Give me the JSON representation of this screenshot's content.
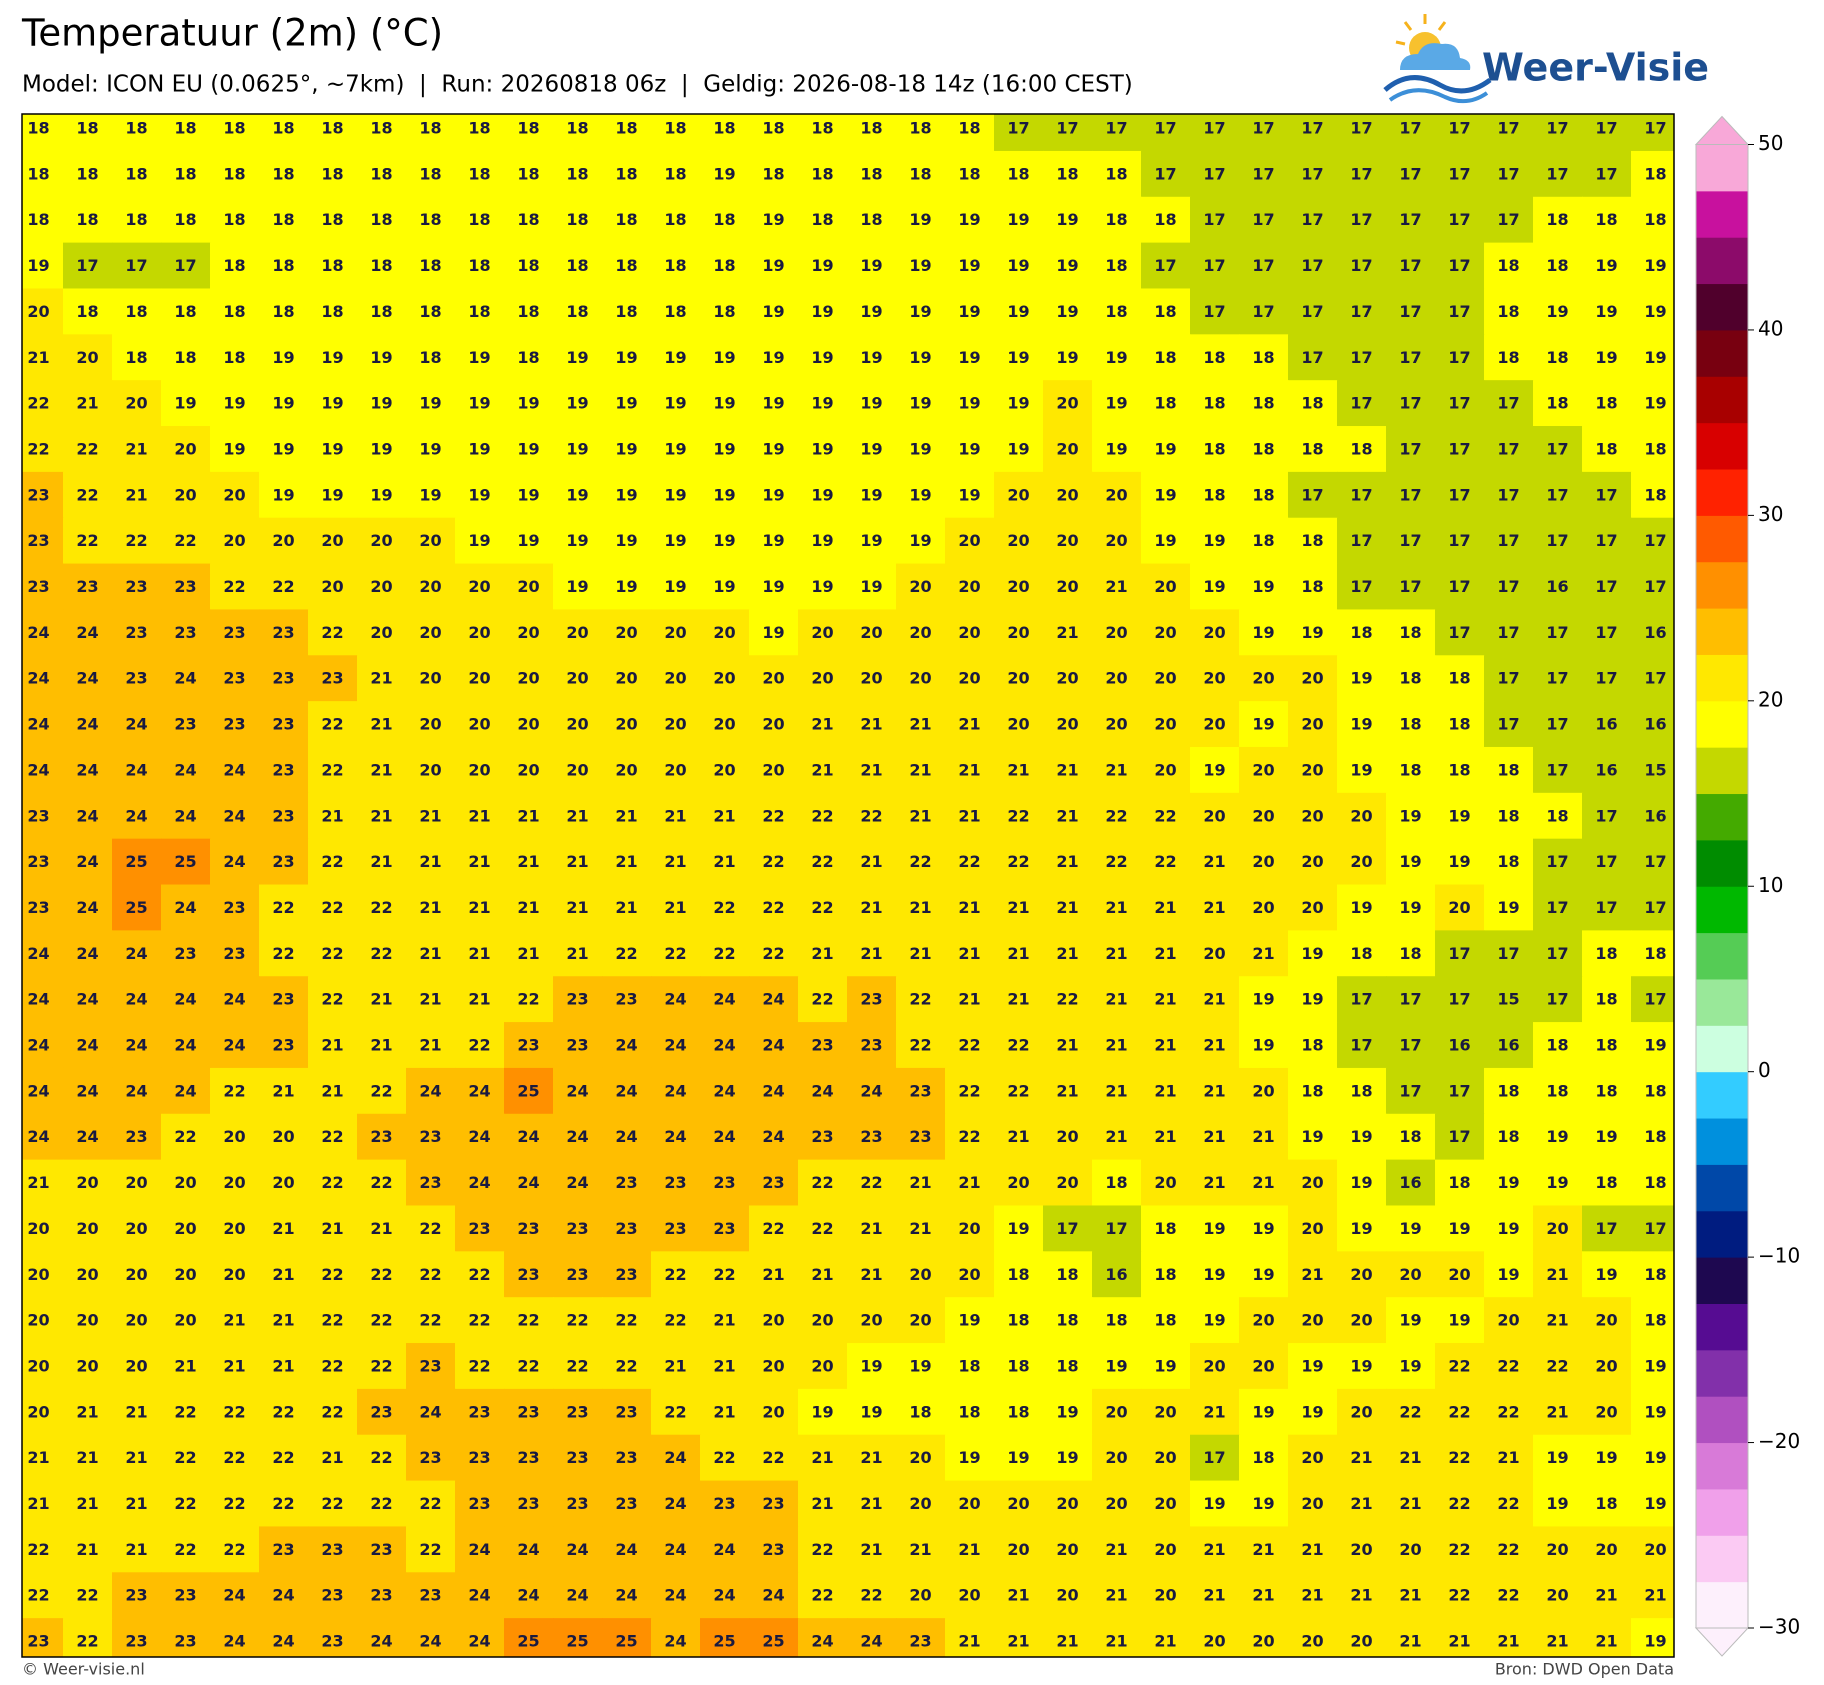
{
  "header": {
    "title": "Temperatuur (2m) (°C)",
    "subtitle": "Model: ICON EU (0.0625°, ~7km)  |  Run: 20260818 06z  |  Geldig: 2026-08-18 14z (16:00 CEST)"
  },
  "logo": {
    "text": "Weer-Visie"
  },
  "grid": {
    "rows": [
      [
        18,
        18,
        18,
        18,
        18,
        18,
        18,
        18,
        18,
        18,
        18,
        18,
        18,
        18,
        18,
        18,
        18,
        18,
        18,
        18,
        17,
        17,
        17,
        17,
        17,
        17,
        17,
        17,
        17,
        17,
        17,
        17,
        17,
        17
      ],
      [
        18,
        18,
        18,
        18,
        18,
        18,
        18,
        18,
        18,
        18,
        18,
        18,
        18,
        18,
        19,
        18,
        18,
        18,
        18,
        18,
        18,
        18,
        18,
        17,
        17,
        17,
        17,
        17,
        17,
        17,
        17,
        17,
        17,
        18
      ],
      [
        18,
        18,
        18,
        18,
        18,
        18,
        18,
        18,
        18,
        18,
        18,
        18,
        18,
        18,
        18,
        19,
        18,
        18,
        19,
        19,
        19,
        19,
        18,
        18,
        17,
        17,
        17,
        17,
        17,
        17,
        17,
        18,
        18,
        18
      ],
      [
        19,
        17,
        17,
        17,
        18,
        18,
        18,
        18,
        18,
        18,
        18,
        18,
        18,
        18,
        18,
        19,
        19,
        19,
        19,
        19,
        19,
        19,
        18,
        17,
        17,
        17,
        17,
        17,
        17,
        17,
        18,
        18,
        19,
        19
      ],
      [
        20,
        18,
        18,
        18,
        18,
        18,
        18,
        18,
        18,
        18,
        18,
        18,
        18,
        18,
        18,
        19,
        19,
        19,
        19,
        19,
        19,
        19,
        18,
        18,
        17,
        17,
        17,
        17,
        17,
        17,
        18,
        19,
        19,
        19
      ],
      [
        21,
        20,
        18,
        18,
        18,
        19,
        19,
        19,
        18,
        19,
        18,
        19,
        19,
        19,
        19,
        19,
        19,
        19,
        19,
        19,
        19,
        19,
        19,
        18,
        18,
        18,
        17,
        17,
        17,
        17,
        18,
        18,
        19,
        19
      ],
      [
        22,
        21,
        20,
        19,
        19,
        19,
        19,
        19,
        19,
        19,
        19,
        19,
        19,
        19,
        19,
        19,
        19,
        19,
        19,
        19,
        19,
        20,
        19,
        18,
        18,
        18,
        18,
        17,
        17,
        17,
        17,
        18,
        18,
        19
      ],
      [
        22,
        22,
        21,
        20,
        19,
        19,
        19,
        19,
        19,
        19,
        19,
        19,
        19,
        19,
        19,
        19,
        19,
        19,
        19,
        19,
        19,
        20,
        19,
        19,
        18,
        18,
        18,
        18,
        17,
        17,
        17,
        17,
        18,
        18
      ],
      [
        23,
        22,
        21,
        20,
        20,
        19,
        19,
        19,
        19,
        19,
        19,
        19,
        19,
        19,
        19,
        19,
        19,
        19,
        19,
        19,
        20,
        20,
        20,
        19,
        18,
        18,
        17,
        17,
        17,
        17,
        17,
        17,
        17,
        18
      ],
      [
        23,
        22,
        22,
        22,
        20,
        20,
        20,
        20,
        20,
        19,
        19,
        19,
        19,
        19,
        19,
        19,
        19,
        19,
        19,
        20,
        20,
        20,
        20,
        19,
        19,
        18,
        18,
        17,
        17,
        17,
        17,
        17,
        17,
        17
      ],
      [
        23,
        23,
        23,
        23,
        22,
        22,
        20,
        20,
        20,
        20,
        20,
        19,
        19,
        19,
        19,
        19,
        19,
        19,
        20,
        20,
        20,
        20,
        21,
        20,
        19,
        19,
        18,
        17,
        17,
        17,
        17,
        16,
        17,
        17
      ],
      [
        24,
        24,
        23,
        23,
        23,
        23,
        22,
        20,
        20,
        20,
        20,
        20,
        20,
        20,
        20,
        19,
        20,
        20,
        20,
        20,
        20,
        21,
        20,
        20,
        20,
        19,
        19,
        18,
        18,
        17,
        17,
        17,
        17,
        16
      ],
      [
        24,
        24,
        23,
        24,
        23,
        23,
        23,
        21,
        20,
        20,
        20,
        20,
        20,
        20,
        20,
        20,
        20,
        20,
        20,
        20,
        20,
        20,
        20,
        20,
        20,
        20,
        20,
        19,
        18,
        18,
        17,
        17,
        17,
        17
      ],
      [
        24,
        24,
        24,
        23,
        23,
        23,
        22,
        21,
        20,
        20,
        20,
        20,
        20,
        20,
        20,
        20,
        21,
        21,
        21,
        21,
        20,
        20,
        20,
        20,
        20,
        19,
        20,
        19,
        18,
        18,
        17,
        17,
        16,
        16
      ],
      [
        24,
        24,
        24,
        24,
        24,
        23,
        22,
        21,
        20,
        20,
        20,
        20,
        20,
        20,
        20,
        20,
        21,
        21,
        21,
        21,
        21,
        21,
        21,
        20,
        19,
        20,
        20,
        19,
        18,
        18,
        18,
        17,
        16,
        15
      ],
      [
        23,
        24,
        24,
        24,
        24,
        23,
        21,
        21,
        21,
        21,
        21,
        21,
        21,
        21,
        21,
        22,
        22,
        22,
        21,
        21,
        22,
        21,
        22,
        22,
        20,
        20,
        20,
        20,
        19,
        19,
        18,
        18,
        17,
        16
      ],
      [
        23,
        24,
        25,
        25,
        24,
        23,
        22,
        21,
        21,
        21,
        21,
        21,
        21,
        21,
        21,
        22,
        22,
        21,
        22,
        22,
        22,
        21,
        22,
        22,
        21,
        20,
        20,
        20,
        19,
        19,
        18,
        17,
        17,
        17
      ],
      [
        23,
        24,
        25,
        24,
        23,
        22,
        22,
        22,
        21,
        21,
        21,
        21,
        21,
        21,
        22,
        22,
        22,
        21,
        21,
        21,
        21,
        21,
        21,
        21,
        21,
        20,
        20,
        19,
        19,
        20,
        19,
        17,
        17,
        17
      ],
      [
        24,
        24,
        24,
        23,
        23,
        22,
        22,
        22,
        21,
        21,
        21,
        21,
        22,
        22,
        22,
        22,
        21,
        21,
        21,
        21,
        21,
        21,
        21,
        21,
        20,
        21,
        19,
        18,
        18,
        17,
        17,
        17,
        18,
        18
      ],
      [
        24,
        24,
        24,
        24,
        24,
        23,
        22,
        21,
        21,
        21,
        22,
        23,
        23,
        24,
        24,
        24,
        22,
        23,
        22,
        21,
        21,
        22,
        21,
        21,
        21,
        19,
        19,
        17,
        17,
        17,
        15,
        17,
        18,
        17
      ],
      [
        24,
        24,
        24,
        24,
        24,
        23,
        21,
        21,
        21,
        22,
        23,
        23,
        24,
        24,
        24,
        24,
        23,
        23,
        22,
        22,
        22,
        21,
        21,
        21,
        21,
        19,
        18,
        17,
        17,
        16,
        16,
        18,
        18,
        19
      ],
      [
        24,
        24,
        24,
        24,
        22,
        21,
        21,
        22,
        24,
        24,
        25,
        24,
        24,
        24,
        24,
        24,
        24,
        24,
        23,
        22,
        22,
        21,
        21,
        21,
        21,
        20,
        18,
        18,
        17,
        17,
        18,
        18,
        18,
        18
      ],
      [
        24,
        24,
        23,
        22,
        20,
        20,
        22,
        23,
        23,
        24,
        24,
        24,
        24,
        24,
        24,
        24,
        23,
        23,
        23,
        22,
        21,
        20,
        21,
        21,
        21,
        21,
        19,
        19,
        18,
        17,
        18,
        19,
        19,
        18
      ],
      [
        21,
        20,
        20,
        20,
        20,
        20,
        22,
        22,
        23,
        24,
        24,
        24,
        23,
        23,
        23,
        23,
        22,
        22,
        21,
        21,
        20,
        20,
        18,
        20,
        21,
        21,
        20,
        19,
        16,
        18,
        19,
        19,
        18,
        18
      ],
      [
        20,
        20,
        20,
        20,
        20,
        21,
        21,
        21,
        22,
        23,
        23,
        23,
        23,
        23,
        23,
        22,
        22,
        21,
        21,
        20,
        19,
        17,
        17,
        18,
        19,
        19,
        20,
        19,
        19,
        19,
        19,
        20,
        17,
        17
      ],
      [
        20,
        20,
        20,
        20,
        20,
        21,
        22,
        22,
        22,
        22,
        23,
        23,
        23,
        22,
        22,
        21,
        21,
        21,
        20,
        20,
        18,
        18,
        16,
        18,
        19,
        19,
        21,
        20,
        20,
        20,
        19,
        21,
        19,
        18
      ],
      [
        20,
        20,
        20,
        20,
        21,
        21,
        22,
        22,
        22,
        22,
        22,
        22,
        22,
        22,
        21,
        20,
        20,
        20,
        20,
        19,
        18,
        18,
        18,
        18,
        19,
        20,
        20,
        20,
        19,
        19,
        20,
        21,
        20,
        18
      ],
      [
        20,
        20,
        20,
        21,
        21,
        21,
        22,
        22,
        23,
        22,
        22,
        22,
        22,
        21,
        21,
        20,
        20,
        19,
        19,
        18,
        18,
        18,
        19,
        19,
        20,
        20,
        19,
        19,
        19,
        22,
        22,
        22,
        20,
        19
      ],
      [
        20,
        21,
        21,
        22,
        22,
        22,
        22,
        23,
        24,
        23,
        23,
        23,
        23,
        22,
        21,
        20,
        19,
        19,
        18,
        18,
        18,
        19,
        20,
        20,
        21,
        19,
        19,
        20,
        22,
        22,
        22,
        21,
        20,
        19
      ],
      [
        21,
        21,
        21,
        22,
        22,
        22,
        21,
        22,
        23,
        23,
        23,
        23,
        23,
        24,
        22,
        22,
        21,
        21,
        20,
        19,
        19,
        19,
        20,
        20,
        17,
        18,
        20,
        21,
        21,
        22,
        21,
        19,
        19,
        19
      ],
      [
        21,
        21,
        21,
        22,
        22,
        22,
        22,
        22,
        22,
        23,
        23,
        23,
        23,
        24,
        23,
        23,
        21,
        21,
        20,
        20,
        20,
        20,
        20,
        20,
        19,
        19,
        20,
        21,
        21,
        22,
        22,
        19,
        18,
        19
      ],
      [
        22,
        21,
        21,
        22,
        22,
        23,
        23,
        23,
        22,
        24,
        24,
        24,
        24,
        24,
        24,
        23,
        22,
        21,
        21,
        21,
        20,
        20,
        21,
        20,
        21,
        21,
        21,
        20,
        20,
        22,
        22,
        20,
        20,
        20
      ],
      [
        22,
        22,
        23,
        23,
        24,
        24,
        23,
        23,
        23,
        24,
        24,
        24,
        24,
        24,
        24,
        24,
        22,
        22,
        20,
        20,
        21,
        20,
        21,
        20,
        21,
        21,
        21,
        21,
        21,
        22,
        22,
        20,
        21,
        21
      ],
      [
        23,
        22,
        23,
        23,
        24,
        24,
        23,
        24,
        24,
        24,
        25,
        25,
        25,
        24,
        25,
        25,
        24,
        24,
        23,
        21,
        21,
        21,
        21,
        21,
        20,
        20,
        20,
        20,
        21,
        21,
        21,
        21,
        21,
        19
      ]
    ]
  },
  "colorbar": {
    "range": [
      -30,
      50
    ],
    "ticks": [
      {
        "value": -30,
        "label": "−30"
      },
      {
        "value": -20,
        "label": "−20"
      },
      {
        "value": -10,
        "label": "−10"
      },
      0,
      10,
      20,
      30,
      40,
      50
    ],
    "colors": [
      "#fdf0fc",
      "#fbcaf3",
      "#f0a0ea",
      "#d87ad8",
      "#b050c0",
      "#8230aa",
      "#560c92",
      "#1e0850",
      "#001c80",
      "#0048a8",
      "#0090dd",
      "#33ccff",
      "#ccffe0",
      "#99e899",
      "#55cc55",
      "#00b800",
      "#008c00",
      "#44aa00",
      "#c4d800",
      "#ffff00",
      "#ffe800",
      "#ffbe00",
      "#ff9000",
      "#ff5a00",
      "#ff2200",
      "#d80000",
      "#a80000",
      "#780010",
      "#50002c",
      "#8c0b6a",
      "#c8119e",
      "#f8a8d8"
    ]
  },
  "footer": {
    "left": "© Weer-visie.nl",
    "right": "Bron: DWD Open Data"
  }
}
